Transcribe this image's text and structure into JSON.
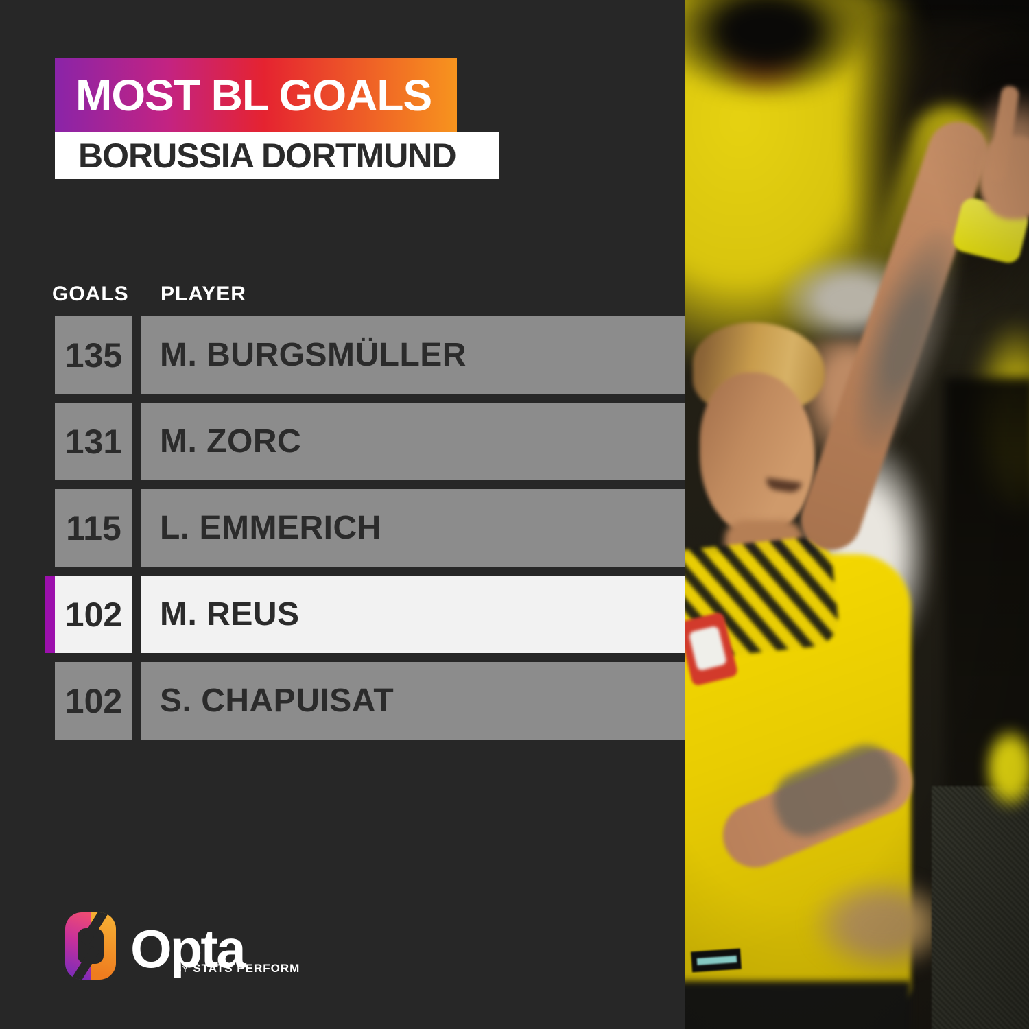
{
  "header": {
    "title": "MOST BL GOALS",
    "subtitle": "BORUSSIA DORTMUND",
    "title_gradient": [
      "#8a24a8",
      "#e52330",
      "#f7941e"
    ]
  },
  "table": {
    "columns": {
      "goals": "GOALS",
      "player": "PLAYER"
    },
    "rows": [
      {
        "goals": "135",
        "player": "M. BURGSMÜLLER",
        "highlight": false
      },
      {
        "goals": "131",
        "player": "M. ZORC",
        "highlight": false
      },
      {
        "goals": "115",
        "player": "L. EMMERICH",
        "highlight": false
      },
      {
        "goals": "102",
        "player": "M. REUS",
        "highlight": true
      },
      {
        "goals": "102",
        "player": "S. CHAPUISAT",
        "highlight": false
      }
    ],
    "colors": {
      "row_background": "#8c8c8c",
      "highlight_background": "#f2f2f2",
      "highlight_accent": "#9c10ad",
      "row_text": "#2b2b2b",
      "background": "#272727"
    }
  },
  "footer": {
    "brand": "Opta",
    "brand_sub_prefix": "BY",
    "brand_sub": "STATS PERFORM"
  },
  "chart_data": {
    "type": "table",
    "title": "MOST BL GOALS",
    "subtitle": "BORUSSIA DORTMUND",
    "columns": [
      "GOALS",
      "PLAYER"
    ],
    "rows": [
      [
        135,
        "M. BURGSMÜLLER"
      ],
      [
        131,
        "M. ZORC"
      ],
      [
        115,
        "L. EMMERICH"
      ],
      [
        102,
        "M. REUS"
      ],
      [
        102,
        "S. CHAPUISAT"
      ]
    ],
    "highlighted_row_index": 3,
    "highlighted_player": "M. REUS",
    "legend_position": "none",
    "grid": false
  }
}
